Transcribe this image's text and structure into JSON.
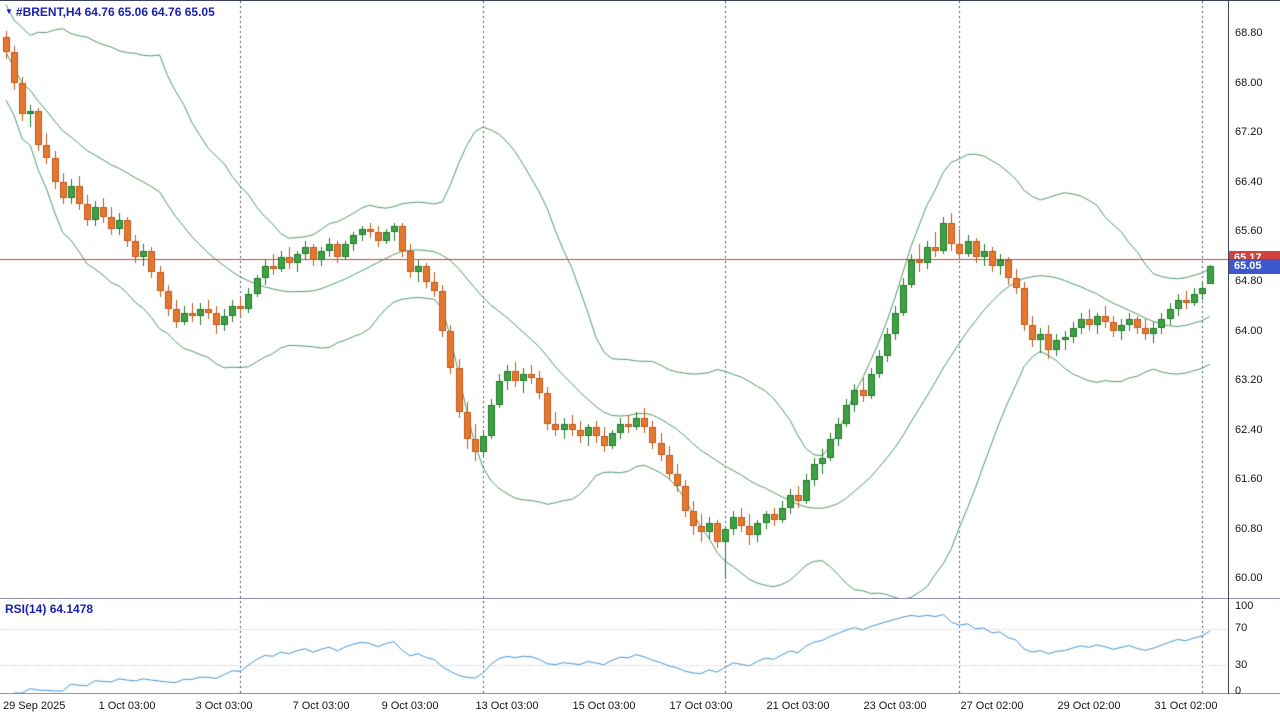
{
  "header": {
    "symbol": "#BRENT,H4",
    "ohlc": "64.76 65.06 64.76 65.05"
  },
  "chart_data": {
    "type": "candlestick",
    "title": "#BRENT,H4",
    "timeframe": "H4",
    "ohlc_display": {
      "open": "64.76",
      "high": "65.06",
      "low": "64.76",
      "close": "65.05"
    },
    "y_axis": {
      "min": 59.69,
      "max": 69.33,
      "tick_labels": [
        "68.80",
        "68.00",
        "67.20",
        "66.40",
        "65.60",
        "64.80",
        "64.00",
        "63.20",
        "62.40",
        "61.60",
        "60.80",
        "60.00"
      ]
    },
    "x_labels": [
      {
        "text": "29 Sep 2025",
        "index": 0
      },
      {
        "text": "1 Oct 03:00",
        "index": 15
      },
      {
        "text": "3 Oct 03:00",
        "index": 27
      },
      {
        "text": "7 Oct 03:00",
        "index": 39
      },
      {
        "text": "9 Oct 03:00",
        "index": 50
      },
      {
        "text": "13 Oct 03:00",
        "index": 62
      },
      {
        "text": "15 Oct 03:00",
        "index": 74
      },
      {
        "text": "17 Oct 03:00",
        "index": 86
      },
      {
        "text": "21 Oct 03:00",
        "index": 98
      },
      {
        "text": "23 Oct 03:00",
        "index": 110
      },
      {
        "text": "27 Oct 02:00",
        "index": 122
      },
      {
        "text": "29 Oct 02:00",
        "index": 134
      },
      {
        "text": "31 Oct 02:00",
        "index": 146
      }
    ],
    "grid_vline_indices": [
      29,
      59,
      89,
      118,
      148
    ],
    "red_line": {
      "price": 65.17,
      "color": "#c84646"
    },
    "price_badges": [
      {
        "value": "65.17",
        "price": 65.17,
        "color": "#d24040"
      },
      {
        "value": "65.05",
        "price": 65.05,
        "color": "#3c58cc"
      }
    ],
    "indicators": {
      "bollinger": {
        "period": 20,
        "deviation": 2.2,
        "color": "#4e9a68"
      },
      "rsi": {
        "label": "RSI(14)",
        "value": "64.1478",
        "period": 14,
        "color": "#4596d6",
        "ticks": [
          {
            "label": "100",
            "value": 100
          },
          {
            "label": "70",
            "value": 70
          },
          {
            "label": "30",
            "value": 30
          },
          {
            "label": "0",
            "value": 0
          }
        ],
        "guide_levels": [
          70,
          30
        ]
      }
    },
    "colors": {
      "up_fill": "#3fa044",
      "up_border": "#217a2a",
      "down_fill": "#e5782e",
      "down_border": "#c1581a",
      "grid": "#4d5470",
      "text": "#11151c",
      "header": "#1b22b0"
    },
    "candles": [
      [
        68.75,
        68.85,
        68.4,
        68.5
      ],
      [
        68.5,
        68.6,
        67.9,
        68.0
      ],
      [
        68.0,
        68.1,
        67.4,
        67.5
      ],
      [
        67.5,
        67.65,
        67.3,
        67.55
      ],
      [
        67.55,
        67.6,
        66.9,
        67.0
      ],
      [
        67.0,
        67.2,
        66.7,
        66.8
      ],
      [
        66.8,
        66.9,
        66.3,
        66.4
      ],
      [
        66.4,
        66.55,
        66.05,
        66.15
      ],
      [
        66.15,
        66.45,
        66.05,
        66.35
      ],
      [
        66.35,
        66.5,
        65.95,
        66.05
      ],
      [
        66.05,
        66.2,
        65.7,
        65.8
      ],
      [
        65.8,
        66.1,
        65.7,
        66.0
      ],
      [
        66.0,
        66.15,
        65.75,
        65.85
      ],
      [
        65.85,
        66.0,
        65.55,
        65.65
      ],
      [
        65.65,
        65.9,
        65.55,
        65.8
      ],
      [
        65.8,
        65.85,
        65.35,
        65.45
      ],
      [
        65.45,
        65.55,
        65.1,
        65.2
      ],
      [
        65.2,
        65.4,
        65.05,
        65.3
      ],
      [
        65.3,
        65.35,
        64.85,
        64.95
      ],
      [
        64.95,
        65.05,
        64.55,
        64.65
      ],
      [
        64.65,
        64.75,
        64.25,
        64.35
      ],
      [
        64.35,
        64.5,
        64.05,
        64.15
      ],
      [
        64.15,
        64.4,
        64.1,
        64.3
      ],
      [
        64.3,
        64.45,
        64.15,
        64.25
      ],
      [
        64.25,
        64.45,
        64.1,
        64.35
      ],
      [
        64.35,
        64.5,
        64.2,
        64.3
      ],
      [
        64.3,
        64.4,
        63.95,
        64.1
      ],
      [
        64.1,
        64.35,
        64.0,
        64.25
      ],
      [
        64.25,
        64.5,
        64.15,
        64.4
      ],
      [
        64.4,
        64.55,
        64.25,
        64.35
      ],
      [
        64.35,
        64.7,
        64.3,
        64.6
      ],
      [
        64.6,
        64.9,
        64.55,
        64.85
      ],
      [
        64.85,
        65.15,
        64.75,
        65.05
      ],
      [
        65.05,
        65.25,
        64.9,
        65.0
      ],
      [
        65.0,
        65.3,
        64.95,
        65.2
      ],
      [
        65.2,
        65.35,
        65.0,
        65.1
      ],
      [
        65.1,
        65.3,
        64.95,
        65.25
      ],
      [
        65.25,
        65.45,
        65.15,
        65.35
      ],
      [
        65.35,
        65.4,
        65.05,
        65.15
      ],
      [
        65.15,
        65.35,
        65.05,
        65.3
      ],
      [
        65.3,
        65.5,
        65.2,
        65.4
      ],
      [
        65.4,
        65.45,
        65.1,
        65.2
      ],
      [
        65.2,
        65.45,
        65.15,
        65.4
      ],
      [
        65.4,
        65.6,
        65.3,
        65.55
      ],
      [
        65.55,
        65.7,
        65.45,
        65.65
      ],
      [
        65.65,
        65.75,
        65.5,
        65.6
      ],
      [
        65.6,
        65.7,
        65.35,
        65.45
      ],
      [
        65.45,
        65.65,
        65.4,
        65.6
      ],
      [
        65.6,
        65.75,
        65.45,
        65.7
      ],
      [
        65.7,
        65.75,
        65.2,
        65.3
      ],
      [
        65.3,
        65.4,
        64.85,
        64.95
      ],
      [
        64.95,
        65.15,
        64.8,
        65.05
      ],
      [
        65.05,
        65.1,
        64.7,
        64.8
      ],
      [
        64.8,
        64.95,
        64.55,
        64.65
      ],
      [
        64.65,
        64.75,
        63.9,
        64.0
      ],
      [
        64.0,
        64.1,
        63.3,
        63.4
      ],
      [
        63.4,
        63.55,
        62.6,
        62.7
      ],
      [
        62.7,
        62.85,
        62.1,
        62.25
      ],
      [
        62.25,
        62.5,
        61.9,
        62.05
      ],
      [
        62.05,
        62.4,
        61.95,
        62.3
      ],
      [
        62.3,
        62.9,
        62.25,
        62.8
      ],
      [
        62.8,
        63.3,
        62.75,
        63.2
      ],
      [
        63.2,
        63.45,
        63.05,
        63.35
      ],
      [
        63.35,
        63.5,
        63.1,
        63.2
      ],
      [
        63.2,
        63.4,
        63.0,
        63.3
      ],
      [
        63.3,
        63.45,
        63.15,
        63.25
      ],
      [
        63.25,
        63.35,
        62.9,
        63.0
      ],
      [
        63.0,
        63.1,
        62.4,
        62.5
      ],
      [
        62.5,
        62.7,
        62.3,
        62.4
      ],
      [
        62.4,
        62.6,
        62.25,
        62.5
      ],
      [
        62.5,
        62.65,
        62.3,
        62.4
      ],
      [
        62.4,
        62.55,
        62.2,
        62.3
      ],
      [
        62.3,
        62.5,
        62.15,
        62.45
      ],
      [
        62.45,
        62.55,
        62.2,
        62.3
      ],
      [
        62.3,
        62.45,
        62.05,
        62.15
      ],
      [
        62.15,
        62.4,
        62.1,
        62.35
      ],
      [
        62.35,
        62.6,
        62.25,
        62.5
      ],
      [
        62.5,
        62.65,
        62.35,
        62.45
      ],
      [
        62.45,
        62.7,
        62.4,
        62.6
      ],
      [
        62.6,
        62.75,
        62.35,
        62.45
      ],
      [
        62.45,
        62.55,
        62.1,
        62.2
      ],
      [
        62.2,
        62.35,
        61.9,
        62.0
      ],
      [
        62.0,
        62.15,
        61.6,
        61.7
      ],
      [
        61.7,
        61.85,
        61.4,
        61.5
      ],
      [
        61.5,
        61.6,
        61.0,
        61.1
      ],
      [
        61.1,
        61.25,
        60.7,
        60.85
      ],
      [
        60.85,
        61.05,
        60.6,
        60.75
      ],
      [
        60.75,
        61.0,
        60.65,
        60.9
      ],
      [
        60.9,
        60.95,
        60.5,
        60.6
      ],
      [
        60.6,
        60.85,
        60.0,
        60.8
      ],
      [
        60.8,
        61.1,
        60.7,
        61.0
      ],
      [
        61.0,
        61.15,
        60.75,
        60.85
      ],
      [
        60.85,
        61.05,
        60.55,
        60.7
      ],
      [
        60.7,
        60.95,
        60.6,
        60.9
      ],
      [
        60.9,
        61.1,
        60.8,
        61.05
      ],
      [
        61.05,
        61.15,
        60.85,
        60.95
      ],
      [
        60.95,
        61.25,
        60.9,
        61.15
      ],
      [
        61.15,
        61.45,
        61.05,
        61.35
      ],
      [
        61.35,
        61.5,
        61.15,
        61.25
      ],
      [
        61.25,
        61.7,
        61.2,
        61.6
      ],
      [
        61.6,
        61.95,
        61.5,
        61.85
      ],
      [
        61.85,
        62.1,
        61.7,
        61.95
      ],
      [
        61.95,
        62.35,
        61.9,
        62.25
      ],
      [
        62.25,
        62.6,
        62.15,
        62.5
      ],
      [
        62.5,
        62.9,
        62.45,
        62.8
      ],
      [
        62.8,
        63.15,
        62.7,
        63.05
      ],
      [
        63.05,
        63.25,
        62.85,
        62.95
      ],
      [
        62.95,
        63.4,
        62.9,
        63.3
      ],
      [
        63.3,
        63.7,
        63.25,
        63.6
      ],
      [
        63.6,
        64.05,
        63.5,
        63.95
      ],
      [
        63.95,
        64.4,
        63.85,
        64.3
      ],
      [
        64.3,
        64.85,
        64.25,
        64.75
      ],
      [
        64.75,
        65.25,
        64.7,
        65.15
      ],
      [
        65.15,
        65.4,
        64.95,
        65.1
      ],
      [
        65.1,
        65.45,
        65.0,
        65.35
      ],
      [
        65.35,
        65.6,
        65.2,
        65.3
      ],
      [
        65.3,
        65.85,
        65.25,
        65.75
      ],
      [
        65.75,
        65.9,
        65.3,
        65.4
      ],
      [
        65.4,
        65.65,
        65.15,
        65.25
      ],
      [
        65.25,
        65.55,
        65.2,
        65.45
      ],
      [
        65.45,
        65.5,
        65.1,
        65.2
      ],
      [
        65.2,
        65.4,
        65.05,
        65.3
      ],
      [
        65.3,
        65.35,
        64.95,
        65.05
      ],
      [
        65.05,
        65.25,
        64.9,
        65.15
      ],
      [
        65.15,
        65.2,
        64.75,
        64.85
      ],
      [
        64.85,
        65.0,
        64.6,
        64.7
      ],
      [
        64.7,
        64.8,
        64.0,
        64.1
      ],
      [
        64.1,
        64.25,
        63.75,
        63.85
      ],
      [
        63.85,
        64.05,
        63.65,
        63.95
      ],
      [
        63.95,
        64.1,
        63.55,
        63.7
      ],
      [
        63.7,
        63.95,
        63.6,
        63.85
      ],
      [
        63.85,
        64.0,
        63.7,
        63.9
      ],
      [
        63.9,
        64.15,
        63.8,
        64.05
      ],
      [
        64.05,
        64.3,
        63.95,
        64.2
      ],
      [
        64.2,
        64.35,
        64.0,
        64.1
      ],
      [
        64.1,
        64.3,
        63.95,
        64.25
      ],
      [
        64.25,
        64.4,
        64.05,
        64.15
      ],
      [
        64.15,
        64.25,
        63.9,
        64.0
      ],
      [
        64.0,
        64.2,
        63.85,
        64.1
      ],
      [
        64.1,
        64.3,
        64.0,
        64.2
      ],
      [
        64.2,
        64.25,
        63.95,
        64.05
      ],
      [
        64.05,
        64.2,
        63.85,
        63.95
      ],
      [
        63.95,
        64.15,
        63.8,
        64.05
      ],
      [
        64.05,
        64.3,
        63.95,
        64.2
      ],
      [
        64.2,
        64.45,
        64.1,
        64.35
      ],
      [
        64.35,
        64.6,
        64.25,
        64.5
      ],
      [
        64.5,
        64.65,
        64.35,
        64.45
      ],
      [
        64.45,
        64.7,
        64.4,
        64.6
      ],
      [
        64.6,
        64.8,
        64.5,
        64.7
      ],
      [
        64.76,
        65.06,
        64.76,
        65.05
      ]
    ]
  }
}
